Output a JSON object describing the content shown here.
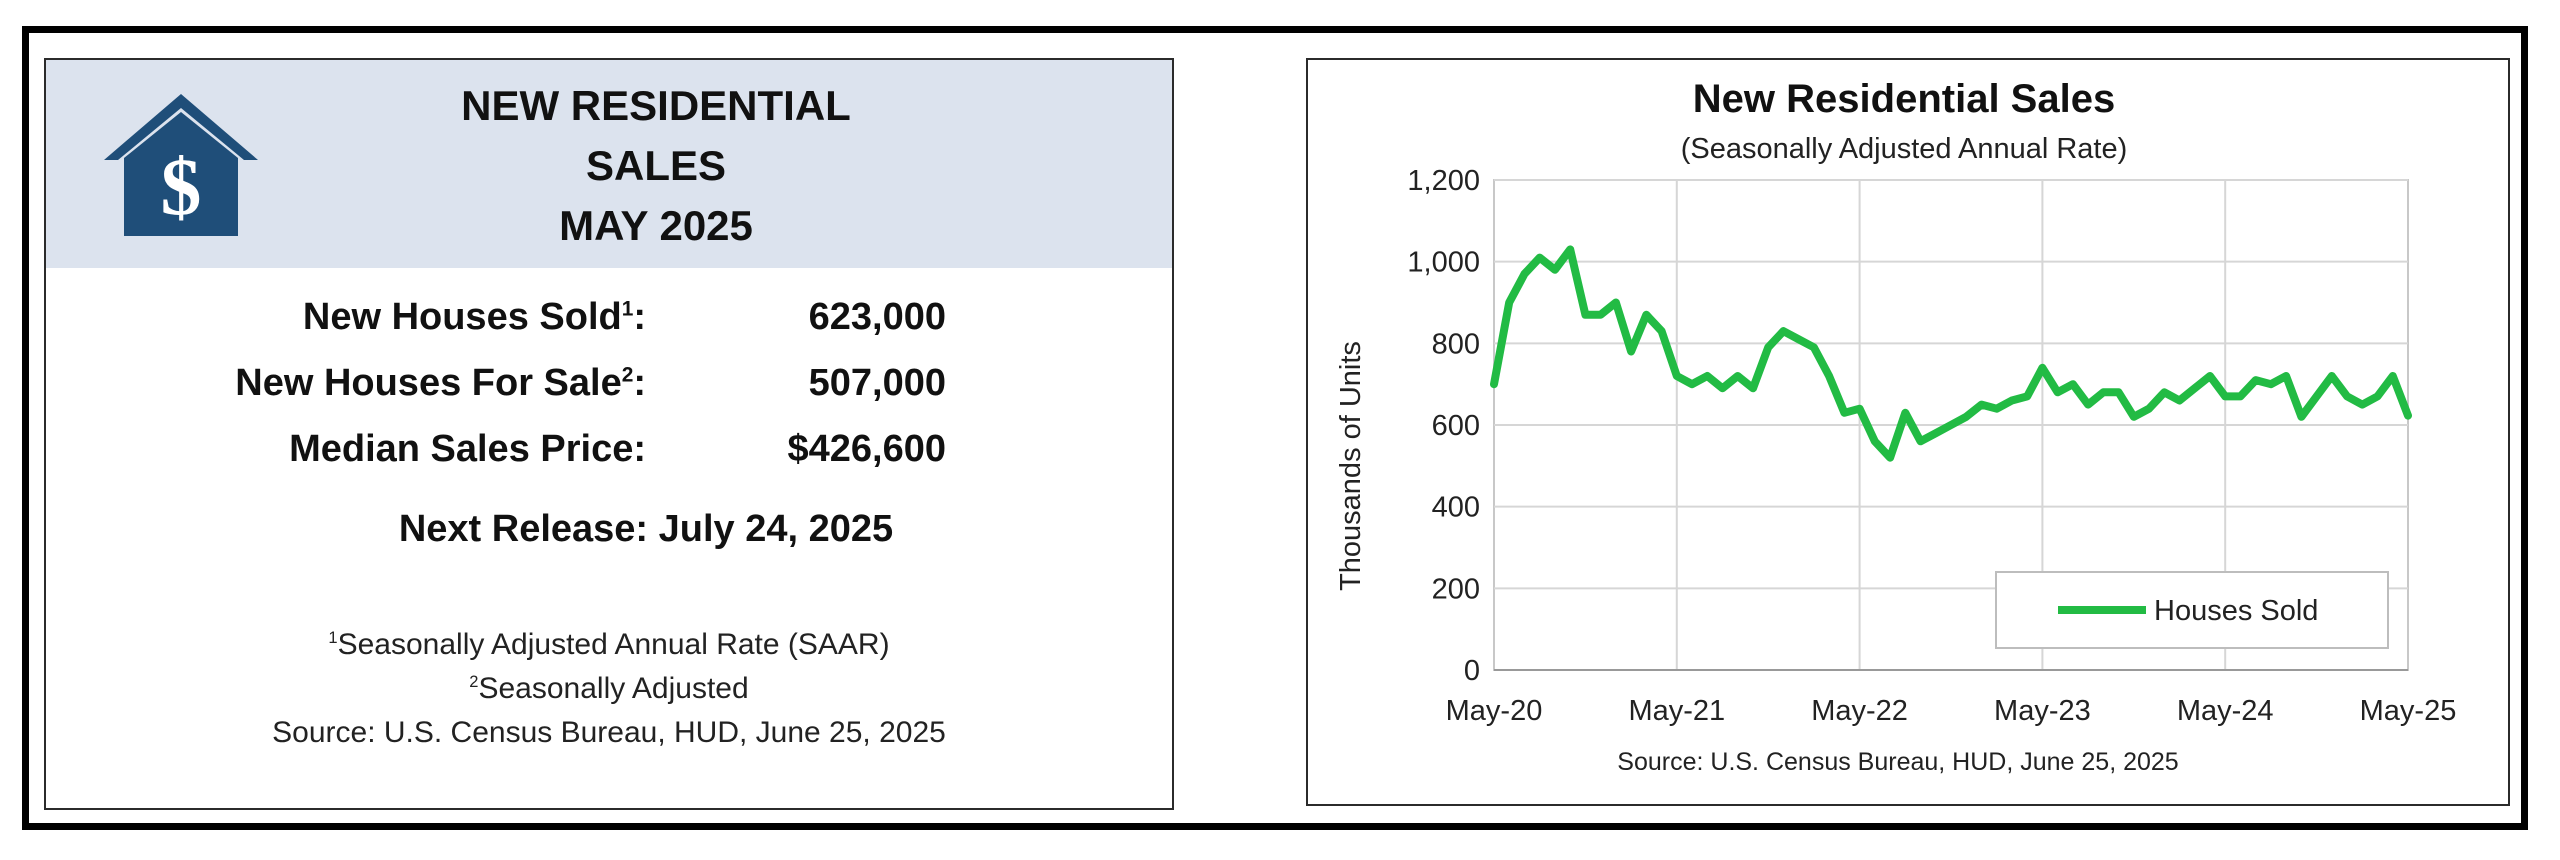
{
  "summary": {
    "title_lines": [
      "NEW RESIDENTIAL",
      "SALES",
      "MAY 2025"
    ],
    "stats": [
      {
        "label": "New Houses Sold",
        "sup": "1",
        "suffix": ":",
        "value": "623,000"
      },
      {
        "label": "New Houses For Sale",
        "sup": "2",
        "suffix": ":",
        "value": "507,000"
      },
      {
        "label": "Median Sales Price:",
        "sup": "",
        "suffix": "",
        "value": "$426,600"
      }
    ],
    "next_release": "Next Release:  July 24, 2025",
    "footnotes": [
      {
        "sup": "1",
        "text": "Seasonally Adjusted Annual Rate (SAAR)"
      },
      {
        "sup": "2",
        "text": "Seasonally Adjusted"
      }
    ],
    "source": "Source:  U.S. Census Bureau, HUD, June 25, 2025",
    "colors": {
      "header_bg": "#dce3ee",
      "logo": "#1f4e79"
    },
    "logo_icon": "house-dollar-icon"
  },
  "chart_data": {
    "type": "line",
    "title": "New Residential Sales",
    "subtitle": "(Seasonally Adjusted Annual Rate)",
    "ylabel": "Thousands of Units",
    "xlabel": "",
    "source": "Source:  U.S. Census Bureau, HUD, June 25, 2025",
    "ylim": [
      0,
      1200
    ],
    "yticks": [
      0,
      200,
      400,
      600,
      800,
      1000,
      1200
    ],
    "ytick_labels": [
      "0",
      "200",
      "400",
      "600",
      "800",
      "1,000",
      "1,200"
    ],
    "xtick_labels": [
      "May-20",
      "May-21",
      "May-22",
      "May-23",
      "May-24",
      "May-25"
    ],
    "grid": true,
    "legend_position": "bottom-right",
    "series": [
      {
        "name": "Houses Sold",
        "color": "#22bb44",
        "values": [
          700,
          900,
          970,
          1010,
          980,
          1030,
          870,
          870,
          900,
          780,
          870,
          830,
          720,
          700,
          720,
          690,
          720,
          690,
          790,
          830,
          810,
          790,
          720,
          630,
          640,
          560,
          520,
          630,
          560,
          580,
          600,
          620,
          650,
          640,
          660,
          670,
          740,
          680,
          700,
          650,
          680,
          680,
          620,
          640,
          680,
          660,
          690,
          720,
          670,
          670,
          710,
          700,
          720,
          620,
          670,
          720,
          670,
          650,
          670,
          720,
          623
        ]
      }
    ]
  }
}
